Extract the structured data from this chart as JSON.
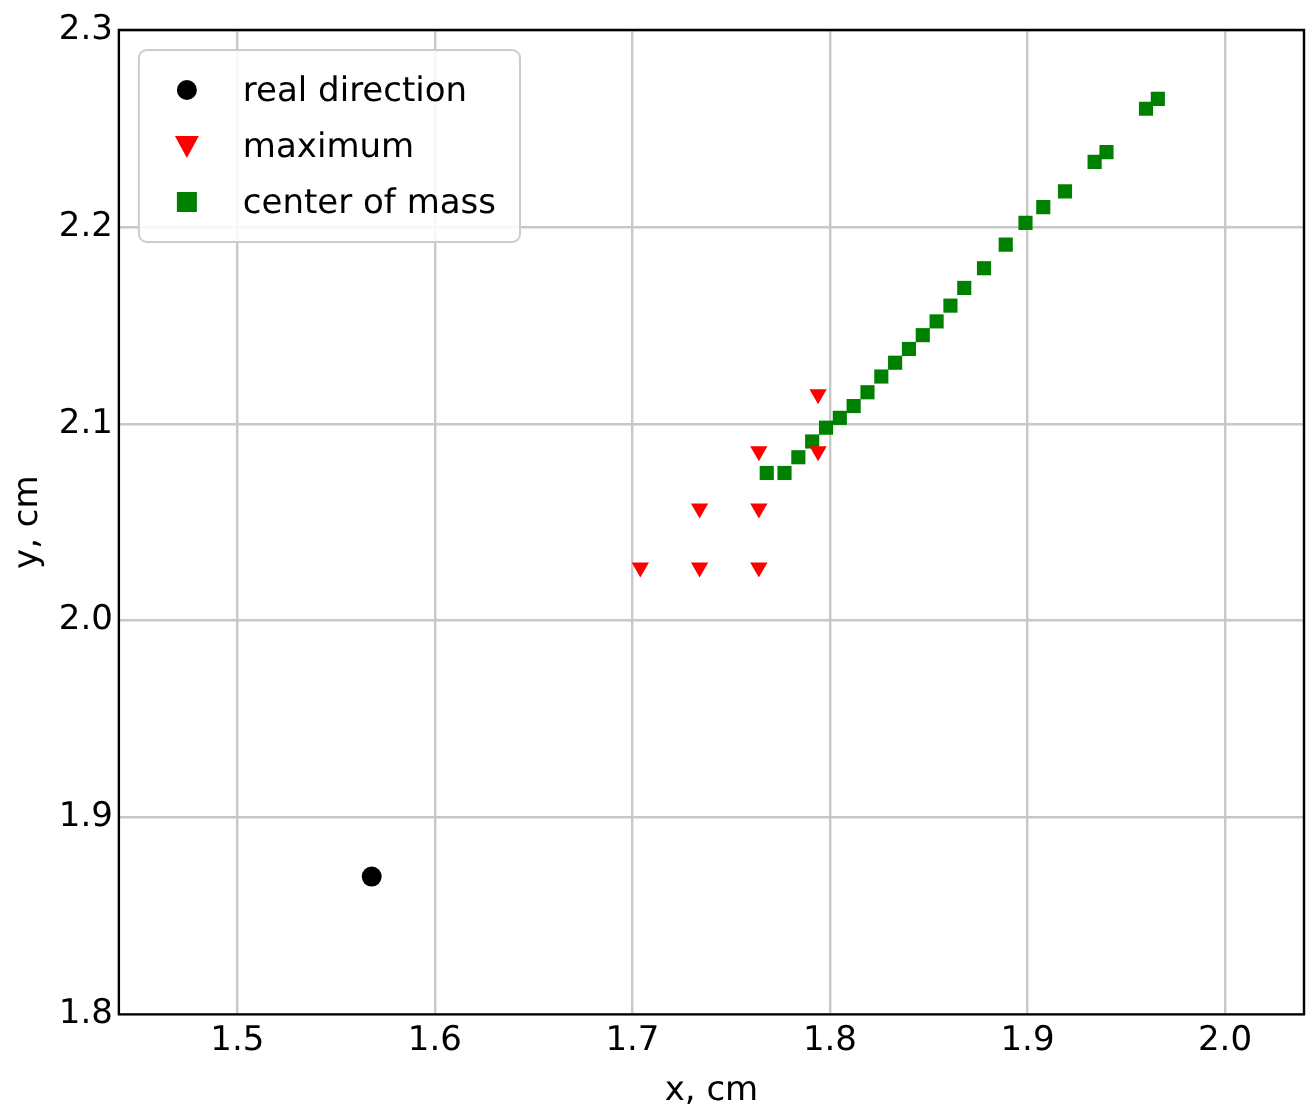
{
  "chart_data": {
    "type": "scatter",
    "xlabel": "x, cm",
    "ylabel": "y, cm",
    "xlim": [
      1.44,
      2.04
    ],
    "ylim": [
      1.8,
      2.3
    ],
    "xticks": [
      1.5,
      1.6,
      1.7,
      1.8,
      1.9,
      {
        "value": 2,
        "label": "2.0"
      }
    ],
    "yticks": [
      1.8,
      1.9,
      {
        "value": 2,
        "label": "2.0"
      },
      2.1,
      2.2,
      2.3
    ],
    "grid": true,
    "legend": "top left",
    "series": [
      {
        "name": "real direction",
        "color": "#000000",
        "marker": "circle",
        "x": [
          1.568
        ],
        "values": [
          1.87
        ]
      },
      {
        "name": "maximum",
        "color": "#ff0000",
        "marker": "triangle",
        "x": [
          1.704,
          1.734,
          1.764,
          1.734,
          1.764,
          1.764,
          1.794,
          1.794
        ],
        "values": [
          2.027,
          2.027,
          2.027,
          2.057,
          2.057,
          2.086,
          2.115,
          2.086
        ]
      },
      {
        "name": "center of mass",
        "color": "#008000",
        "marker": "square",
        "x": [
          1.768,
          1.777,
          1.784,
          1.791,
          1.798,
          1.805,
          1.812,
          1.819,
          1.826,
          1.833,
          1.84,
          1.847,
          1.854,
          1.861,
          1.868,
          1.878,
          1.889,
          1.899,
          1.908,
          1.919,
          1.934,
          1.94,
          1.96,
          1.966
        ],
        "values": [
          2.075,
          2.075,
          2.083,
          2.091,
          2.098,
          2.103,
          2.109,
          2.116,
          2.124,
          2.131,
          2.138,
          2.145,
          2.152,
          2.16,
          2.169,
          2.179,
          2.191,
          2.202,
          2.21,
          2.218,
          2.233,
          2.238,
          2.26,
          2.265
        ]
      }
    ]
  }
}
